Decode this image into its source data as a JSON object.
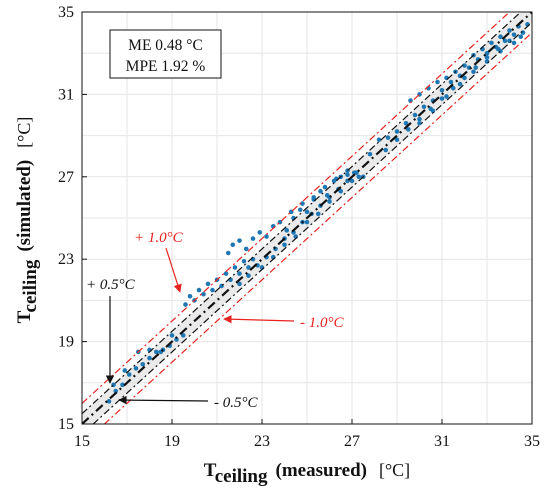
{
  "chart_data": {
    "type": "scatter",
    "xlim": [
      15,
      35
    ],
    "ylim": [
      15,
      35
    ],
    "x_ticks": [
      15,
      19,
      23,
      27,
      31,
      35
    ],
    "y_ticks": [
      15,
      19,
      23,
      27,
      31,
      35
    ],
    "grid": true,
    "xlabel": {
      "main": "T",
      "sub": "ceiling",
      "rest": "(measured)",
      "unit": "[°C]"
    },
    "ylabel": {
      "main": "T",
      "sub": "ceiling",
      "rest": "(simulated)",
      "unit": "[°C]"
    },
    "stats": {
      "me": "ME 0.48 °C",
      "mpe": "MPE 1.92 %"
    },
    "colors": {
      "points": "#1f77b4",
      "outer_band": "#e8231f",
      "inner_band": "#111111",
      "band_fill": "#d9d9d9"
    },
    "reference_lines": [
      {
        "offset": 0,
        "style": "dash-dot",
        "color": "#111111"
      },
      {
        "offset": 0.5,
        "style": "dash-dot",
        "color": "#111111"
      },
      {
        "offset": -0.5,
        "style": "dash-dot",
        "color": "#111111"
      },
      {
        "offset": 1.0,
        "style": "dash-dot",
        "color": "#e8231f"
      },
      {
        "offset": -1.0,
        "style": "dash-dot",
        "color": "#e8231f"
      }
    ],
    "annotations": [
      {
        "text": "+ 1.0°C",
        "color": "#e8231f"
      },
      {
        "text": "- 1.0°C",
        "color": "#e8231f"
      },
      {
        "text": "+ 0.5°C",
        "color": "#111111"
      },
      {
        "text": "- 0.5°C",
        "color": "#111111"
      }
    ],
    "series": [
      {
        "points": [
          [
            16.2,
            16.1
          ],
          [
            16.5,
            16.6
          ],
          [
            16.8,
            16.9
          ],
          [
            17.1,
            17.4
          ],
          [
            17.4,
            17.7
          ],
          [
            17.7,
            17.9
          ],
          [
            18.0,
            18.2
          ],
          [
            18.3,
            18.5
          ],
          [
            18.6,
            18.6
          ],
          [
            18.9,
            18.8
          ],
          [
            19.2,
            19.1
          ],
          [
            19.5,
            19.3
          ],
          [
            16.4,
            16.9
          ],
          [
            16.9,
            17.6
          ],
          [
            17.5,
            18.5
          ],
          [
            18.0,
            18.6
          ],
          [
            18.5,
            18.5
          ],
          [
            19.0,
            19.3
          ],
          [
            19.6,
            20.8
          ],
          [
            19.8,
            21.2
          ],
          [
            20.0,
            21.0
          ],
          [
            20.2,
            21.5
          ],
          [
            20.4,
            21.3
          ],
          [
            20.6,
            21.8
          ],
          [
            20.8,
            21.5
          ],
          [
            21.0,
            22.0
          ],
          [
            21.2,
            21.7
          ],
          [
            21.4,
            22.3
          ],
          [
            21.6,
            22.0
          ],
          [
            21.8,
            22.6
          ],
          [
            22.0,
            22.3
          ],
          [
            22.2,
            22.9
          ],
          [
            22.4,
            22.6
          ],
          [
            22.6,
            23.0
          ],
          [
            22.0,
            21.8
          ],
          [
            22.4,
            22.2
          ],
          [
            22.8,
            22.7
          ],
          [
            23.2,
            23.1
          ],
          [
            23.6,
            23.5
          ],
          [
            24.0,
            24.0
          ],
          [
            24.4,
            24.3
          ],
          [
            24.8,
            24.8
          ],
          [
            25.2,
            25.2
          ],
          [
            25.6,
            25.6
          ],
          [
            26.0,
            26.0
          ],
          [
            26.4,
            26.4
          ],
          [
            26.8,
            26.8
          ],
          [
            27.2,
            27.2
          ],
          [
            21.5,
            23.3
          ],
          [
            21.7,
            23.7
          ],
          [
            22.0,
            23.9
          ],
          [
            22.3,
            23.5
          ],
          [
            22.6,
            24.0
          ],
          [
            22.9,
            24.3
          ],
          [
            23.2,
            24.1
          ],
          [
            23.5,
            24.6
          ],
          [
            23.8,
            24.8
          ],
          [
            24.1,
            24.4
          ],
          [
            24.4,
            25.0
          ],
          [
            24.7,
            25.4
          ],
          [
            25.0,
            25.3
          ],
          [
            25.3,
            25.9
          ],
          [
            25.6,
            26.3
          ],
          [
            25.9,
            26.1
          ],
          [
            26.2,
            26.8
          ],
          [
            26.5,
            27.0
          ],
          [
            26.8,
            27.3
          ],
          [
            27.1,
            27.2
          ],
          [
            23.0,
            22.6
          ],
          [
            23.5,
            23.1
          ],
          [
            24.0,
            23.7
          ],
          [
            24.5,
            24.1
          ],
          [
            25.0,
            24.8
          ],
          [
            25.5,
            25.2
          ],
          [
            26.0,
            25.8
          ],
          [
            26.5,
            26.3
          ],
          [
            27.0,
            26.8
          ],
          [
            27.5,
            27.0
          ],
          [
            24.3,
            25.3
          ],
          [
            24.8,
            25.7
          ],
          [
            25.3,
            26.0
          ],
          [
            25.8,
            26.5
          ],
          [
            26.3,
            26.9
          ],
          [
            26.8,
            27.1
          ],
          [
            27.3,
            27.0
          ],
          [
            27.8,
            28.1
          ],
          [
            28.2,
            28.8
          ],
          [
            28.6,
            28.9
          ],
          [
            29.0,
            29.2
          ],
          [
            29.4,
            29.6
          ],
          [
            29.8,
            30.0
          ],
          [
            30.2,
            30.4
          ],
          [
            30.6,
            30.7
          ],
          [
            31.0,
            31.2
          ],
          [
            31.4,
            31.6
          ],
          [
            31.8,
            31.9
          ],
          [
            32.2,
            32.3
          ],
          [
            32.6,
            32.7
          ],
          [
            33.0,
            33.0
          ],
          [
            33.4,
            33.3
          ],
          [
            33.8,
            33.6
          ],
          [
            34.2,
            33.9
          ],
          [
            34.6,
            34.0
          ],
          [
            28.5,
            28.3
          ],
          [
            29.0,
            28.8
          ],
          [
            29.5,
            29.3
          ],
          [
            30.0,
            29.8
          ],
          [
            30.5,
            30.3
          ],
          [
            31.0,
            30.8
          ],
          [
            31.5,
            31.3
          ],
          [
            32.0,
            31.8
          ],
          [
            32.5,
            32.3
          ],
          [
            33.0,
            32.8
          ],
          [
            33.5,
            33.2
          ],
          [
            34.0,
            33.6
          ],
          [
            34.5,
            33.8
          ],
          [
            29.6,
            30.7
          ],
          [
            30.0,
            31.0
          ],
          [
            30.4,
            31.3
          ],
          [
            30.8,
            31.6
          ],
          [
            31.2,
            31.8
          ],
          [
            31.6,
            32.1
          ],
          [
            32.0,
            32.4
          ],
          [
            32.4,
            32.9
          ],
          [
            32.8,
            33.2
          ],
          [
            33.2,
            33.5
          ],
          [
            33.6,
            33.8
          ],
          [
            34.0,
            34.1
          ],
          [
            34.4,
            34.3
          ],
          [
            34.8,
            34.4
          ],
          [
            30.0,
            29.6
          ],
          [
            30.6,
            30.2
          ],
          [
            31.2,
            30.9
          ],
          [
            31.8,
            31.5
          ],
          [
            32.4,
            32.1
          ],
          [
            33.0,
            32.6
          ],
          [
            33.6,
            33.1
          ],
          [
            34.2,
            33.5
          ]
        ]
      }
    ]
  }
}
